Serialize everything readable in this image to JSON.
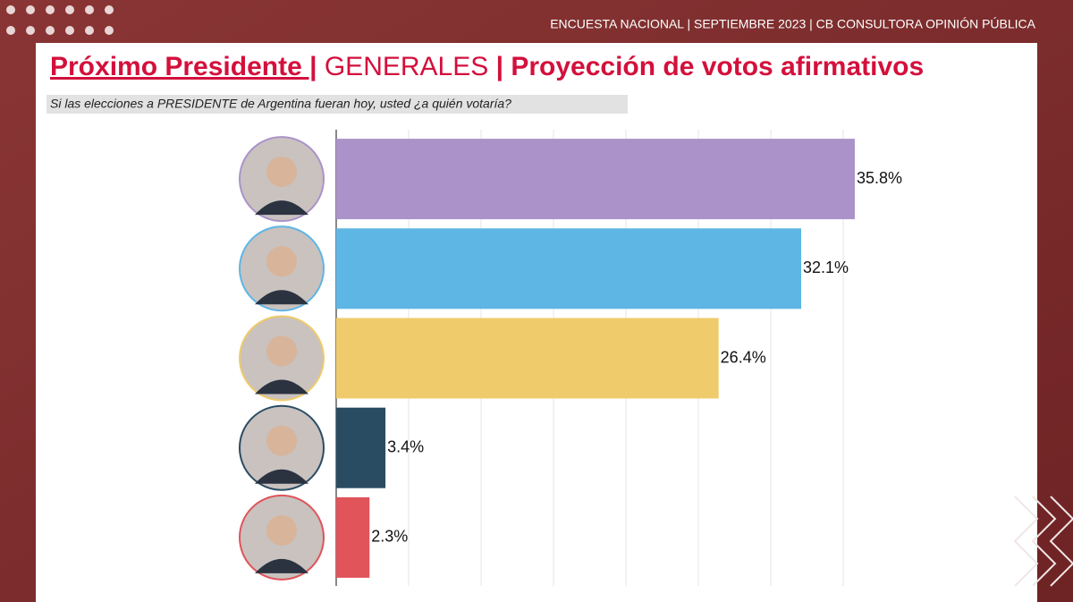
{
  "header": "ENCUESTA NACIONAL | SEPTIEMBRE  2023 | CB CONSULTORA OPINIÓN PÚBLICA",
  "chart_data": {
    "type": "bar",
    "orientation": "horizontal",
    "title": [
      "Próximo Presidente |",
      "GENERALES",
      "| Proyección de votos afirmativos"
    ],
    "subtitle": "Si las elecciones a PRESIDENTE de Argentina fueran hoy, usted ¿a quién votaría?",
    "values": [
      35.8,
      32.1,
      26.4,
      3.4,
      2.3
    ],
    "value_labels": [
      "35.8%",
      "32.1%",
      "26.4%",
      "3.4%",
      "2.3%"
    ],
    "colors": [
      "#ab93c9",
      "#5eb6e5",
      "#efcb6b",
      "#2a4c63",
      "#e0545a"
    ],
    "xlim": [
      0,
      40
    ],
    "xticks": [
      0,
      5,
      10,
      15,
      20,
      25,
      30,
      35
    ],
    "grid": true
  }
}
